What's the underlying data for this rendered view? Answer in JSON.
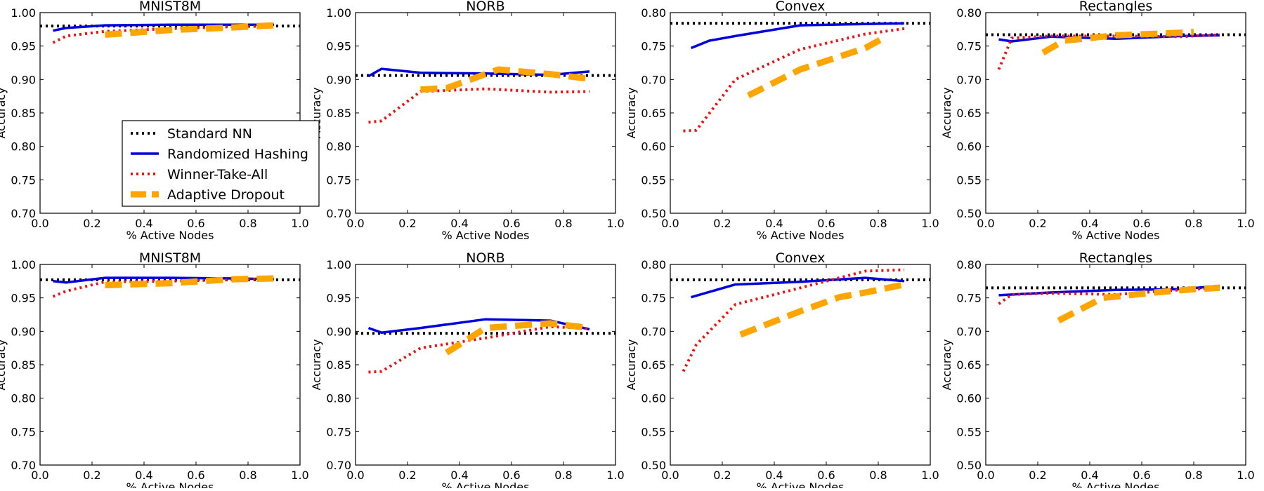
{
  "styles": {
    "Standard NN": {
      "color": "#000000",
      "width": 4,
      "dash": "3 5"
    },
    "Randomized Hashing": {
      "color": "#0000dd",
      "width": 3.5,
      "dash": ""
    },
    "Winner-Take-All": {
      "color": "#ee1111",
      "width": 4,
      "dash": "3 5"
    },
    "Adaptive Dropout": {
      "color": "#ffa500",
      "width": 9,
      "dash": "24 12"
    }
  },
  "legend": {
    "entries": [
      "Standard NN",
      "Randomized Hashing",
      "Winner-Take-All",
      "Adaptive Dropout"
    ]
  },
  "chart_data": [
    {
      "type": "line",
      "title": "MNIST8M",
      "xlabel": "% Active Nodes",
      "ylabel": "Accuracy",
      "xlim": [
        0.0,
        1.0
      ],
      "ylim": [
        0.7,
        1.0
      ],
      "xticks": [
        "0.0",
        "0.2",
        "0.4",
        "0.6",
        "0.8",
        "1.0"
      ],
      "yticks": [
        "0.70",
        "0.75",
        "0.80",
        "0.85",
        "0.90",
        "0.95",
        "1.00"
      ],
      "series": [
        {
          "name": "Standard NN",
          "x": [
            0.0,
            1.0
          ],
          "y": [
            0.98,
            0.98
          ]
        },
        {
          "name": "Randomized Hashing",
          "x": [
            0.05,
            0.1,
            0.25,
            0.5,
            0.75,
            0.9
          ],
          "y": [
            0.973,
            0.977,
            0.981,
            0.982,
            0.982,
            0.982
          ]
        },
        {
          "name": "Winner-Take-All",
          "x": [
            0.05,
            0.1,
            0.25,
            0.5,
            0.75,
            0.9
          ],
          "y": [
            0.955,
            0.965,
            0.972,
            0.976,
            0.979,
            0.98
          ]
        },
        {
          "name": "Adaptive Dropout",
          "x": [
            0.25,
            0.5,
            0.75,
            0.9
          ],
          "y": [
            0.967,
            0.974,
            0.978,
            0.981
          ]
        }
      ]
    },
    {
      "type": "line",
      "title": "NORB",
      "xlabel": "% Active Nodes",
      "ylabel": "Accuracy",
      "xlim": [
        0.0,
        1.0
      ],
      "ylim": [
        0.7,
        1.0
      ],
      "xticks": [
        "0.0",
        "0.2",
        "0.4",
        "0.6",
        "0.8",
        "1.0"
      ],
      "yticks": [
        "0.70",
        "0.75",
        "0.80",
        "0.85",
        "0.90",
        "0.95",
        "1.00"
      ],
      "series": [
        {
          "name": "Standard NN",
          "x": [
            0.0,
            1.0
          ],
          "y": [
            0.906,
            0.906
          ]
        },
        {
          "name": "Randomized Hashing",
          "x": [
            0.05,
            0.1,
            0.25,
            0.5,
            0.75,
            0.9
          ],
          "y": [
            0.905,
            0.916,
            0.91,
            0.909,
            0.907,
            0.912
          ]
        },
        {
          "name": "Winner-Take-All",
          "x": [
            0.05,
            0.1,
            0.25,
            0.5,
            0.75,
            0.9
          ],
          "y": [
            0.836,
            0.838,
            0.882,
            0.886,
            0.881,
            0.882
          ]
        },
        {
          "name": "Adaptive Dropout",
          "x": [
            0.25,
            0.35,
            0.55,
            0.75,
            0.9
          ],
          "y": [
            0.885,
            0.887,
            0.915,
            0.908,
            0.901
          ]
        }
      ]
    },
    {
      "type": "line",
      "title": "Convex",
      "xlabel": "% Active Nodes",
      "ylabel": "Accuracy",
      "xlim": [
        0.0,
        1.0
      ],
      "ylim": [
        0.5,
        0.8
      ],
      "xticks": [
        "0.0",
        "0.2",
        "0.4",
        "0.6",
        "0.8",
        "1.0"
      ],
      "yticks": [
        "0.50",
        "0.55",
        "0.60",
        "0.65",
        "0.70",
        "0.75",
        "0.80"
      ],
      "series": [
        {
          "name": "Standard NN",
          "x": [
            0.0,
            1.0
          ],
          "y": [
            0.784,
            0.784
          ]
        },
        {
          "name": "Randomized Hashing",
          "x": [
            0.08,
            0.15,
            0.25,
            0.5,
            0.75,
            0.9
          ],
          "y": [
            0.747,
            0.758,
            0.765,
            0.781,
            0.783,
            0.784
          ]
        },
        {
          "name": "Winner-Take-All",
          "x": [
            0.05,
            0.1,
            0.25,
            0.5,
            0.75,
            0.9
          ],
          "y": [
            0.623,
            0.624,
            0.7,
            0.745,
            0.768,
            0.776
          ]
        },
        {
          "name": "Adaptive Dropout",
          "x": [
            0.3,
            0.5,
            0.75,
            0.83
          ],
          "y": [
            0.676,
            0.715,
            0.747,
            0.764
          ]
        }
      ]
    },
    {
      "type": "line",
      "title": "Rectangles",
      "xlabel": "% Active Nodes",
      "ylabel": "Accuracy",
      "xlim": [
        0.0,
        1.0
      ],
      "ylim": [
        0.5,
        0.8
      ],
      "xticks": [
        "0.0",
        "0.2",
        "0.4",
        "0.6",
        "0.8",
        "1.0"
      ],
      "yticks": [
        "0.50",
        "0.55",
        "0.60",
        "0.65",
        "0.70",
        "0.75",
        "0.80"
      ],
      "series": [
        {
          "name": "Standard NN",
          "x": [
            0.0,
            1.0
          ],
          "y": [
            0.767,
            0.767
          ]
        },
        {
          "name": "Randomized Hashing",
          "x": [
            0.05,
            0.1,
            0.25,
            0.5,
            0.75,
            0.9
          ],
          "y": [
            0.76,
            0.757,
            0.764,
            0.761,
            0.765,
            0.766
          ]
        },
        {
          "name": "Winner-Take-All",
          "x": [
            0.05,
            0.1,
            0.25,
            0.5,
            0.75,
            0.9
          ],
          "y": [
            0.715,
            0.762,
            0.765,
            0.765,
            0.764,
            0.767
          ]
        },
        {
          "name": "Adaptive Dropout",
          "x": [
            0.22,
            0.3,
            0.5,
            0.75,
            0.8
          ],
          "y": [
            0.74,
            0.758,
            0.766,
            0.77,
            0.771
          ]
        }
      ]
    },
    {
      "type": "line",
      "title": "MNIST8M",
      "xlabel": "% Active Nodes",
      "ylabel": "Accuracy",
      "xlim": [
        0.0,
        1.0
      ],
      "ylim": [
        0.7,
        1.0
      ],
      "xticks": [
        "0.0",
        "0.2",
        "0.4",
        "0.6",
        "0.8",
        "1.0"
      ],
      "yticks": [
        "0.70",
        "0.75",
        "0.80",
        "0.85",
        "0.90",
        "0.95",
        "1.00"
      ],
      "series": [
        {
          "name": "Standard NN",
          "x": [
            0.0,
            1.0
          ],
          "y": [
            0.977,
            0.977
          ]
        },
        {
          "name": "Randomized Hashing",
          "x": [
            0.05,
            0.1,
            0.25,
            0.5,
            0.75,
            0.9
          ],
          "y": [
            0.975,
            0.973,
            0.98,
            0.98,
            0.979,
            0.978
          ]
        },
        {
          "name": "Winner-Take-All",
          "x": [
            0.05,
            0.1,
            0.25,
            0.5,
            0.75,
            0.9
          ],
          "y": [
            0.952,
            0.96,
            0.974,
            0.975,
            0.977,
            0.979
          ]
        },
        {
          "name": "Adaptive Dropout",
          "x": [
            0.25,
            0.5,
            0.75,
            0.9
          ],
          "y": [
            0.969,
            0.972,
            0.978,
            0.979
          ]
        }
      ]
    },
    {
      "type": "line",
      "title": "NORB",
      "xlabel": "% Active Nodes",
      "ylabel": "Accuracy",
      "xlim": [
        0.0,
        1.0
      ],
      "ylim": [
        0.7,
        1.0
      ],
      "xticks": [
        "0.0",
        "0.2",
        "0.4",
        "0.6",
        "0.8",
        "1.0"
      ],
      "yticks": [
        "0.70",
        "0.75",
        "0.80",
        "0.85",
        "0.90",
        "0.95",
        "1.00"
      ],
      "series": [
        {
          "name": "Standard NN",
          "x": [
            0.0,
            1.0
          ],
          "y": [
            0.897,
            0.897
          ]
        },
        {
          "name": "Randomized Hashing",
          "x": [
            0.05,
            0.1,
            0.25,
            0.5,
            0.75,
            0.9
          ],
          "y": [
            0.905,
            0.898,
            0.905,
            0.918,
            0.916,
            0.903
          ]
        },
        {
          "name": "Winner-Take-All",
          "x": [
            0.05,
            0.1,
            0.25,
            0.5,
            0.75,
            0.9
          ],
          "y": [
            0.839,
            0.84,
            0.875,
            0.89,
            0.907,
            0.904
          ]
        },
        {
          "name": "Adaptive Dropout",
          "x": [
            0.35,
            0.5,
            0.75,
            0.9
          ],
          "y": [
            0.868,
            0.905,
            0.912,
            0.905
          ]
        }
      ]
    },
    {
      "type": "line",
      "title": "Convex",
      "xlabel": "% Active Nodes",
      "ylabel": "Accuracy",
      "xlim": [
        0.0,
        1.0
      ],
      "ylim": [
        0.5,
        0.8
      ],
      "xticks": [
        "0.0",
        "0.2",
        "0.4",
        "0.6",
        "0.8",
        "1.0"
      ],
      "yticks": [
        "0.50",
        "0.55",
        "0.60",
        "0.65",
        "0.70",
        "0.75",
        "0.80"
      ],
      "series": [
        {
          "name": "Standard NN",
          "x": [
            0.0,
            1.0
          ],
          "y": [
            0.777,
            0.777
          ]
        },
        {
          "name": "Randomized Hashing",
          "x": [
            0.08,
            0.25,
            0.5,
            0.75,
            0.9
          ],
          "y": [
            0.751,
            0.77,
            0.774,
            0.78,
            0.775
          ]
        },
        {
          "name": "Winner-Take-All",
          "x": [
            0.05,
            0.1,
            0.25,
            0.5,
            0.75,
            0.9
          ],
          "y": [
            0.64,
            0.68,
            0.74,
            0.765,
            0.79,
            0.792
          ]
        },
        {
          "name": "Adaptive Dropout",
          "x": [
            0.27,
            0.5,
            0.65,
            0.75,
            0.9
          ],
          "y": [
            0.695,
            0.73,
            0.751,
            0.758,
            0.77
          ]
        }
      ]
    },
    {
      "type": "line",
      "title": "Rectangles",
      "xlabel": "% Active Nodes",
      "ylabel": "Accuracy",
      "xlim": [
        0.0,
        1.0
      ],
      "ylim": [
        0.5,
        0.8
      ],
      "xticks": [
        "0.0",
        "0.2",
        "0.4",
        "0.6",
        "0.8",
        "1.0"
      ],
      "yticks": [
        "0.50",
        "0.55",
        "0.60",
        "0.65",
        "0.70",
        "0.75",
        "0.80"
      ],
      "series": [
        {
          "name": "Standard NN",
          "x": [
            0.0,
            1.0
          ],
          "y": [
            0.765,
            0.765
          ]
        },
        {
          "name": "Randomized Hashing",
          "x": [
            0.05,
            0.25,
            0.5,
            0.75,
            0.9
          ],
          "y": [
            0.754,
            0.758,
            0.762,
            0.763,
            0.768
          ]
        },
        {
          "name": "Winner-Take-All",
          "x": [
            0.05,
            0.1,
            0.25,
            0.5,
            0.75,
            0.9
          ],
          "y": [
            0.741,
            0.755,
            0.757,
            0.755,
            0.762,
            0.765
          ]
        },
        {
          "name": "Adaptive Dropout",
          "x": [
            0.28,
            0.45,
            0.65,
            0.8,
            0.9
          ],
          "y": [
            0.716,
            0.75,
            0.758,
            0.763,
            0.765
          ]
        }
      ]
    }
  ]
}
